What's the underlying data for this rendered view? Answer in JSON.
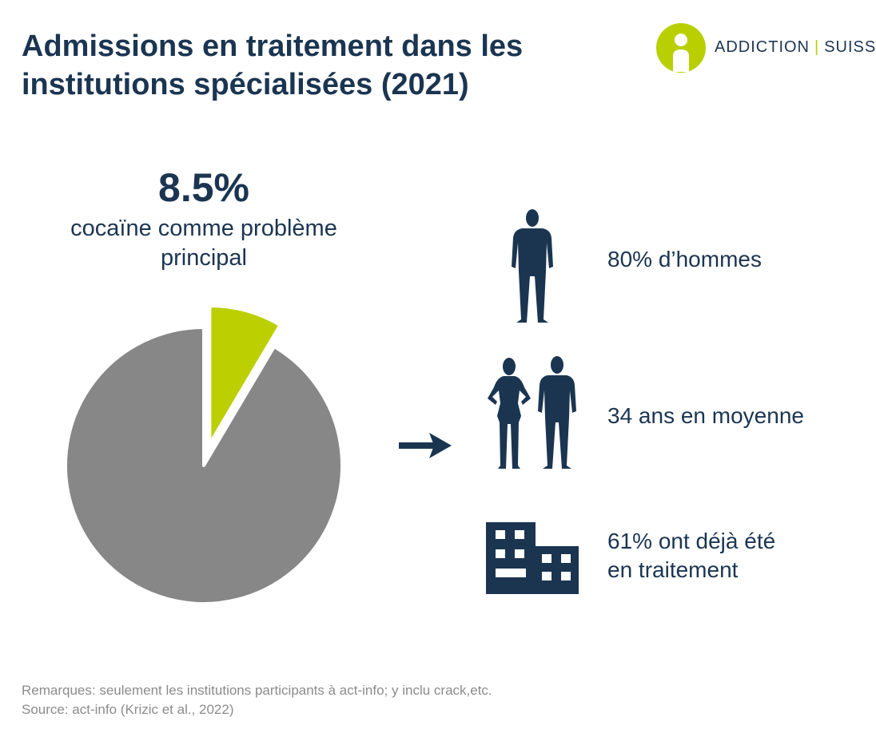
{
  "title": "Admissions en traitement dans les institutions spécialisées (2021)",
  "logo": {
    "left": "ADDICTION",
    "right": "SUISSE",
    "accent_color": "#b9cf00"
  },
  "highlight": {
    "value": "8.5%",
    "label": "cocaïne comme problème principal"
  },
  "chart_data": {
    "type": "pie",
    "slices": [
      {
        "value": 8.5,
        "color": "#bccf00",
        "exploded": true
      },
      {
        "value": 91.5,
        "color": "#878787"
      }
    ]
  },
  "facts": [
    {
      "icon": "man-silhouette-icon",
      "text": "80% d’hommes"
    },
    {
      "icon": "woman-and-man-silhouette-icon",
      "text": "34 ans en moyenne"
    },
    {
      "icon": "building-icon",
      "text_line1": "61% ont déjà été",
      "text_line2": "en traitement"
    }
  ],
  "notes": {
    "remarks": "Remarques: seulement les institutions participants à act-info; y inclu crack,etc.",
    "source": "Source: act-info (Krizic et al., 2022)"
  },
  "colors": {
    "navy": "#1b3551",
    "lime": "#bccf00",
    "grey": "#878787"
  }
}
